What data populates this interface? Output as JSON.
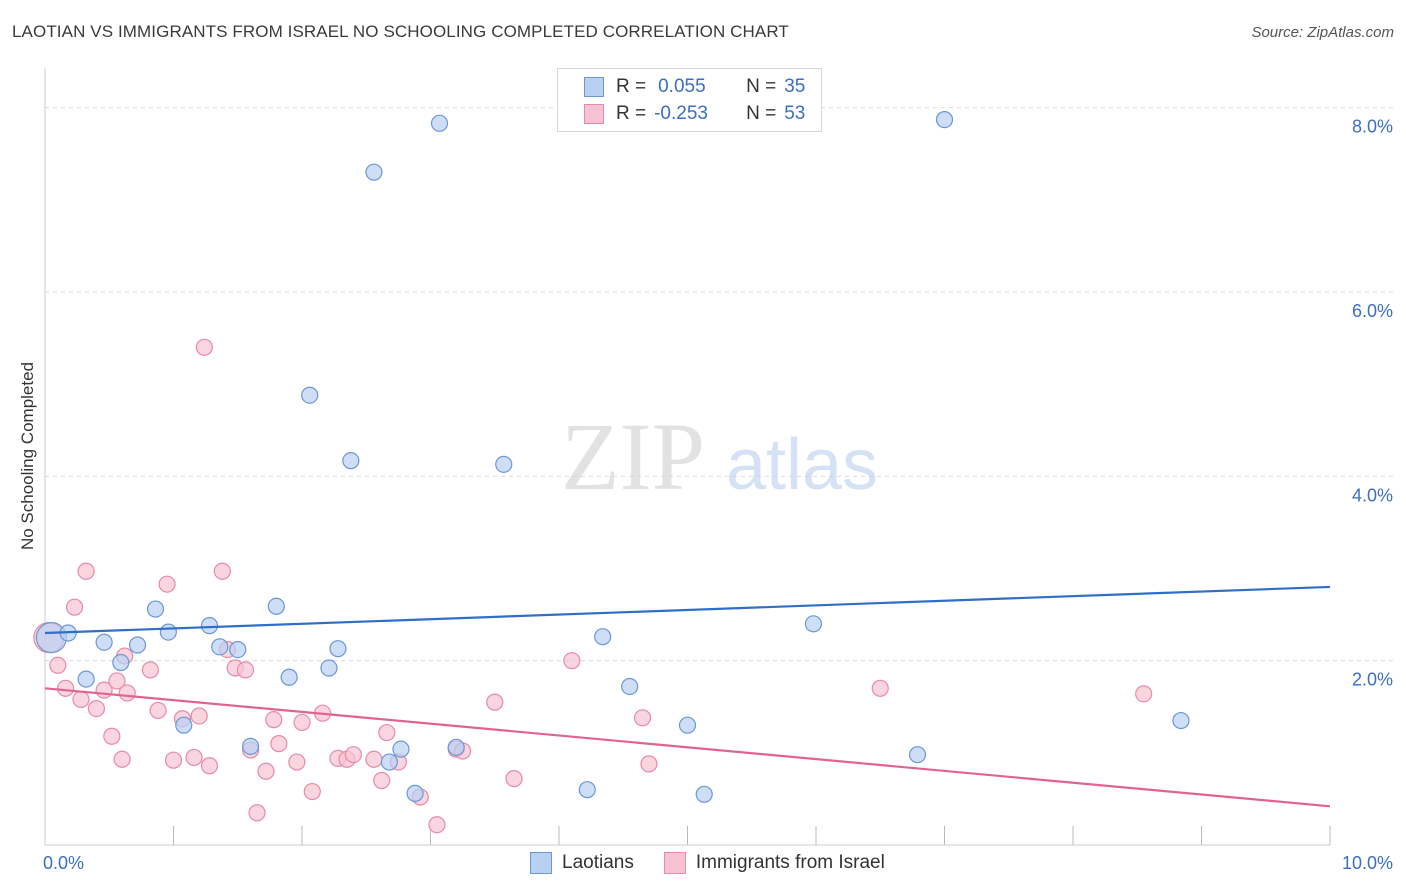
{
  "title": "LAOTIAN VS IMMIGRANTS FROM ISRAEL NO SCHOOLING COMPLETED CORRELATION CHART",
  "source": "Source: ZipAtlas.com",
  "watermark": {
    "part1": "ZIP",
    "part2": "atlas"
  },
  "legend_box": {
    "rows": [
      {
        "r_label": "R =",
        "r_value": "0.055",
        "n_label": "N =",
        "n_value": "35"
      },
      {
        "r_label": "R =",
        "r_value": "-0.253",
        "n_label": "N =",
        "n_value": "53"
      }
    ]
  },
  "colors": {
    "blue_fill": "#b8d0f2",
    "blue_stroke": "#6b97d6",
    "blue_line": "#2f6fc8",
    "pink_fill": "#f7c3d3",
    "pink_stroke": "#e88aa8",
    "pink_line": "#e0648e",
    "tick_text": "#3a6fc4"
  },
  "chart_data": {
    "type": "scatter",
    "title": "LAOTIAN VS IMMIGRANTS FROM ISRAEL NO SCHOOLING COMPLETED CORRELATION CHART",
    "xlabel": "",
    "ylabel": "No Schooling Completed",
    "xlim": [
      0,
      10
    ],
    "ylim": [
      0,
      8.3
    ],
    "x_tick_labels": [
      "0.0%",
      "10.0%"
    ],
    "y_ticks": [
      2,
      4,
      6,
      8
    ],
    "y_tick_labels": [
      "2.0%",
      "4.0%",
      "6.0%",
      "8.0%"
    ],
    "grid": true,
    "legend": "bottom-center",
    "series": [
      {
        "name": "Laotians",
        "R": 0.055,
        "N": 35,
        "trend": {
          "x": [
            0,
            10
          ],
          "y": [
            2.3,
            2.8
          ]
        },
        "points": [
          {
            "x": 0.05,
            "y": 2.25,
            "big": true
          },
          {
            "x": 0.18,
            "y": 2.3
          },
          {
            "x": 0.32,
            "y": 1.8
          },
          {
            "x": 0.46,
            "y": 2.2
          },
          {
            "x": 0.59,
            "y": 1.98
          },
          {
            "x": 0.72,
            "y": 2.17
          },
          {
            "x": 0.86,
            "y": 2.56
          },
          {
            "x": 0.96,
            "y": 2.31
          },
          {
            "x": 1.08,
            "y": 1.3
          },
          {
            "x": 1.28,
            "y": 2.38
          },
          {
            "x": 1.36,
            "y": 2.15
          },
          {
            "x": 1.5,
            "y": 2.12
          },
          {
            "x": 1.6,
            "y": 1.07
          },
          {
            "x": 1.8,
            "y": 2.59
          },
          {
            "x": 1.9,
            "y": 1.82
          },
          {
            "x": 2.06,
            "y": 4.88
          },
          {
            "x": 2.21,
            "y": 1.92
          },
          {
            "x": 2.28,
            "y": 2.13
          },
          {
            "x": 2.38,
            "y": 4.17
          },
          {
            "x": 2.56,
            "y": 7.3
          },
          {
            "x": 2.68,
            "y": 0.9
          },
          {
            "x": 2.77,
            "y": 1.04
          },
          {
            "x": 2.88,
            "y": 0.56
          },
          {
            "x": 3.07,
            "y": 7.83
          },
          {
            "x": 3.2,
            "y": 1.06
          },
          {
            "x": 3.57,
            "y": 4.13
          },
          {
            "x": 4.22,
            "y": 0.6
          },
          {
            "x": 4.34,
            "y": 2.26
          },
          {
            "x": 4.55,
            "y": 1.72
          },
          {
            "x": 5.0,
            "y": 1.3
          },
          {
            "x": 5.13,
            "y": 0.55
          },
          {
            "x": 5.98,
            "y": 2.4
          },
          {
            "x": 6.79,
            "y": 0.98
          },
          {
            "x": 7.0,
            "y": 7.87
          },
          {
            "x": 8.84,
            "y": 1.35
          }
        ]
      },
      {
        "name": "Immigrants from Israel",
        "R": -0.253,
        "N": 53,
        "trend": {
          "x": [
            0,
            10
          ],
          "y": [
            1.7,
            0.42
          ]
        },
        "points": [
          {
            "x": 0.03,
            "y": 2.25,
            "big": true
          },
          {
            "x": 0.1,
            "y": 1.95
          },
          {
            "x": 0.16,
            "y": 1.7
          },
          {
            "x": 0.23,
            "y": 2.58
          },
          {
            "x": 0.28,
            "y": 1.58
          },
          {
            "x": 0.32,
            "y": 2.97
          },
          {
            "x": 0.4,
            "y": 1.48
          },
          {
            "x": 0.46,
            "y": 1.68
          },
          {
            "x": 0.52,
            "y": 1.18
          },
          {
            "x": 0.56,
            "y": 1.78
          },
          {
            "x": 0.6,
            "y": 0.93
          },
          {
            "x": 0.62,
            "y": 2.05
          },
          {
            "x": 0.64,
            "y": 1.65
          },
          {
            "x": 0.82,
            "y": 1.9
          },
          {
            "x": 0.88,
            "y": 1.46
          },
          {
            "x": 0.95,
            "y": 2.83
          },
          {
            "x": 1.0,
            "y": 0.92
          },
          {
            "x": 1.07,
            "y": 1.37
          },
          {
            "x": 1.16,
            "y": 0.95
          },
          {
            "x": 1.2,
            "y": 1.4
          },
          {
            "x": 1.24,
            "y": 5.4
          },
          {
            "x": 1.28,
            "y": 0.86
          },
          {
            "x": 1.38,
            "y": 2.97
          },
          {
            "x": 1.42,
            "y": 2.12
          },
          {
            "x": 1.48,
            "y": 1.92
          },
          {
            "x": 1.56,
            "y": 1.9
          },
          {
            "x": 1.6,
            "y": 1.03
          },
          {
            "x": 1.65,
            "y": 0.35
          },
          {
            "x": 1.72,
            "y": 0.8
          },
          {
            "x": 1.78,
            "y": 1.36
          },
          {
            "x": 1.82,
            "y": 1.1
          },
          {
            "x": 1.96,
            "y": 0.9
          },
          {
            "x": 2.0,
            "y": 1.33
          },
          {
            "x": 2.08,
            "y": 0.58
          },
          {
            "x": 2.16,
            "y": 1.43
          },
          {
            "x": 2.28,
            "y": 0.94
          },
          {
            "x": 2.35,
            "y": 0.93
          },
          {
            "x": 2.4,
            "y": 0.98
          },
          {
            "x": 2.56,
            "y": 0.93
          },
          {
            "x": 2.62,
            "y": 0.7
          },
          {
            "x": 2.66,
            "y": 1.22
          },
          {
            "x": 2.75,
            "y": 0.9
          },
          {
            "x": 2.92,
            "y": 0.52
          },
          {
            "x": 3.05,
            "y": 0.22
          },
          {
            "x": 3.2,
            "y": 1.04
          },
          {
            "x": 3.25,
            "y": 1.02
          },
          {
            "x": 3.5,
            "y": 1.55
          },
          {
            "x": 3.65,
            "y": 0.72
          },
          {
            "x": 4.1,
            "y": 2.0
          },
          {
            "x": 4.65,
            "y": 1.38
          },
          {
            "x": 4.7,
            "y": 0.88
          },
          {
            "x": 6.5,
            "y": 1.7
          },
          {
            "x": 8.55,
            "y": 1.64
          }
        ]
      }
    ]
  }
}
